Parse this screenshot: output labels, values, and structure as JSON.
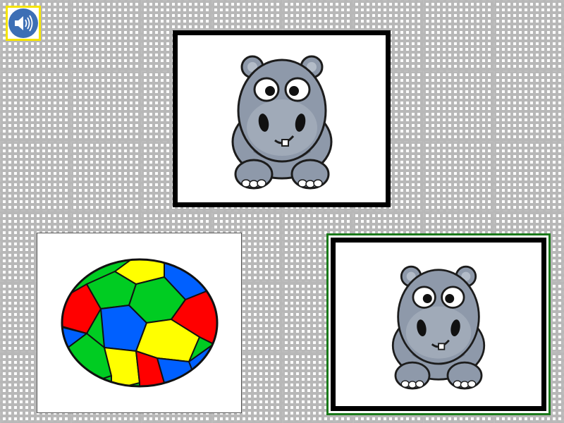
{
  "speaker": {
    "icon": "speaker-icon",
    "border_color": "#f5e400",
    "button_color": "#3d6fb5"
  },
  "target_card": {
    "image": "hippo-icon"
  },
  "choices": [
    {
      "image": "soccer-ball-icon"
    },
    {
      "image": "hippo-icon",
      "selected": true,
      "selected_color": "#1a7a1a"
    }
  ],
  "colors": {
    "hippo_body": "#8e99aa",
    "ball_colors": [
      "#ff0000",
      "#0060ff",
      "#ffff00",
      "#00cc22"
    ]
  }
}
